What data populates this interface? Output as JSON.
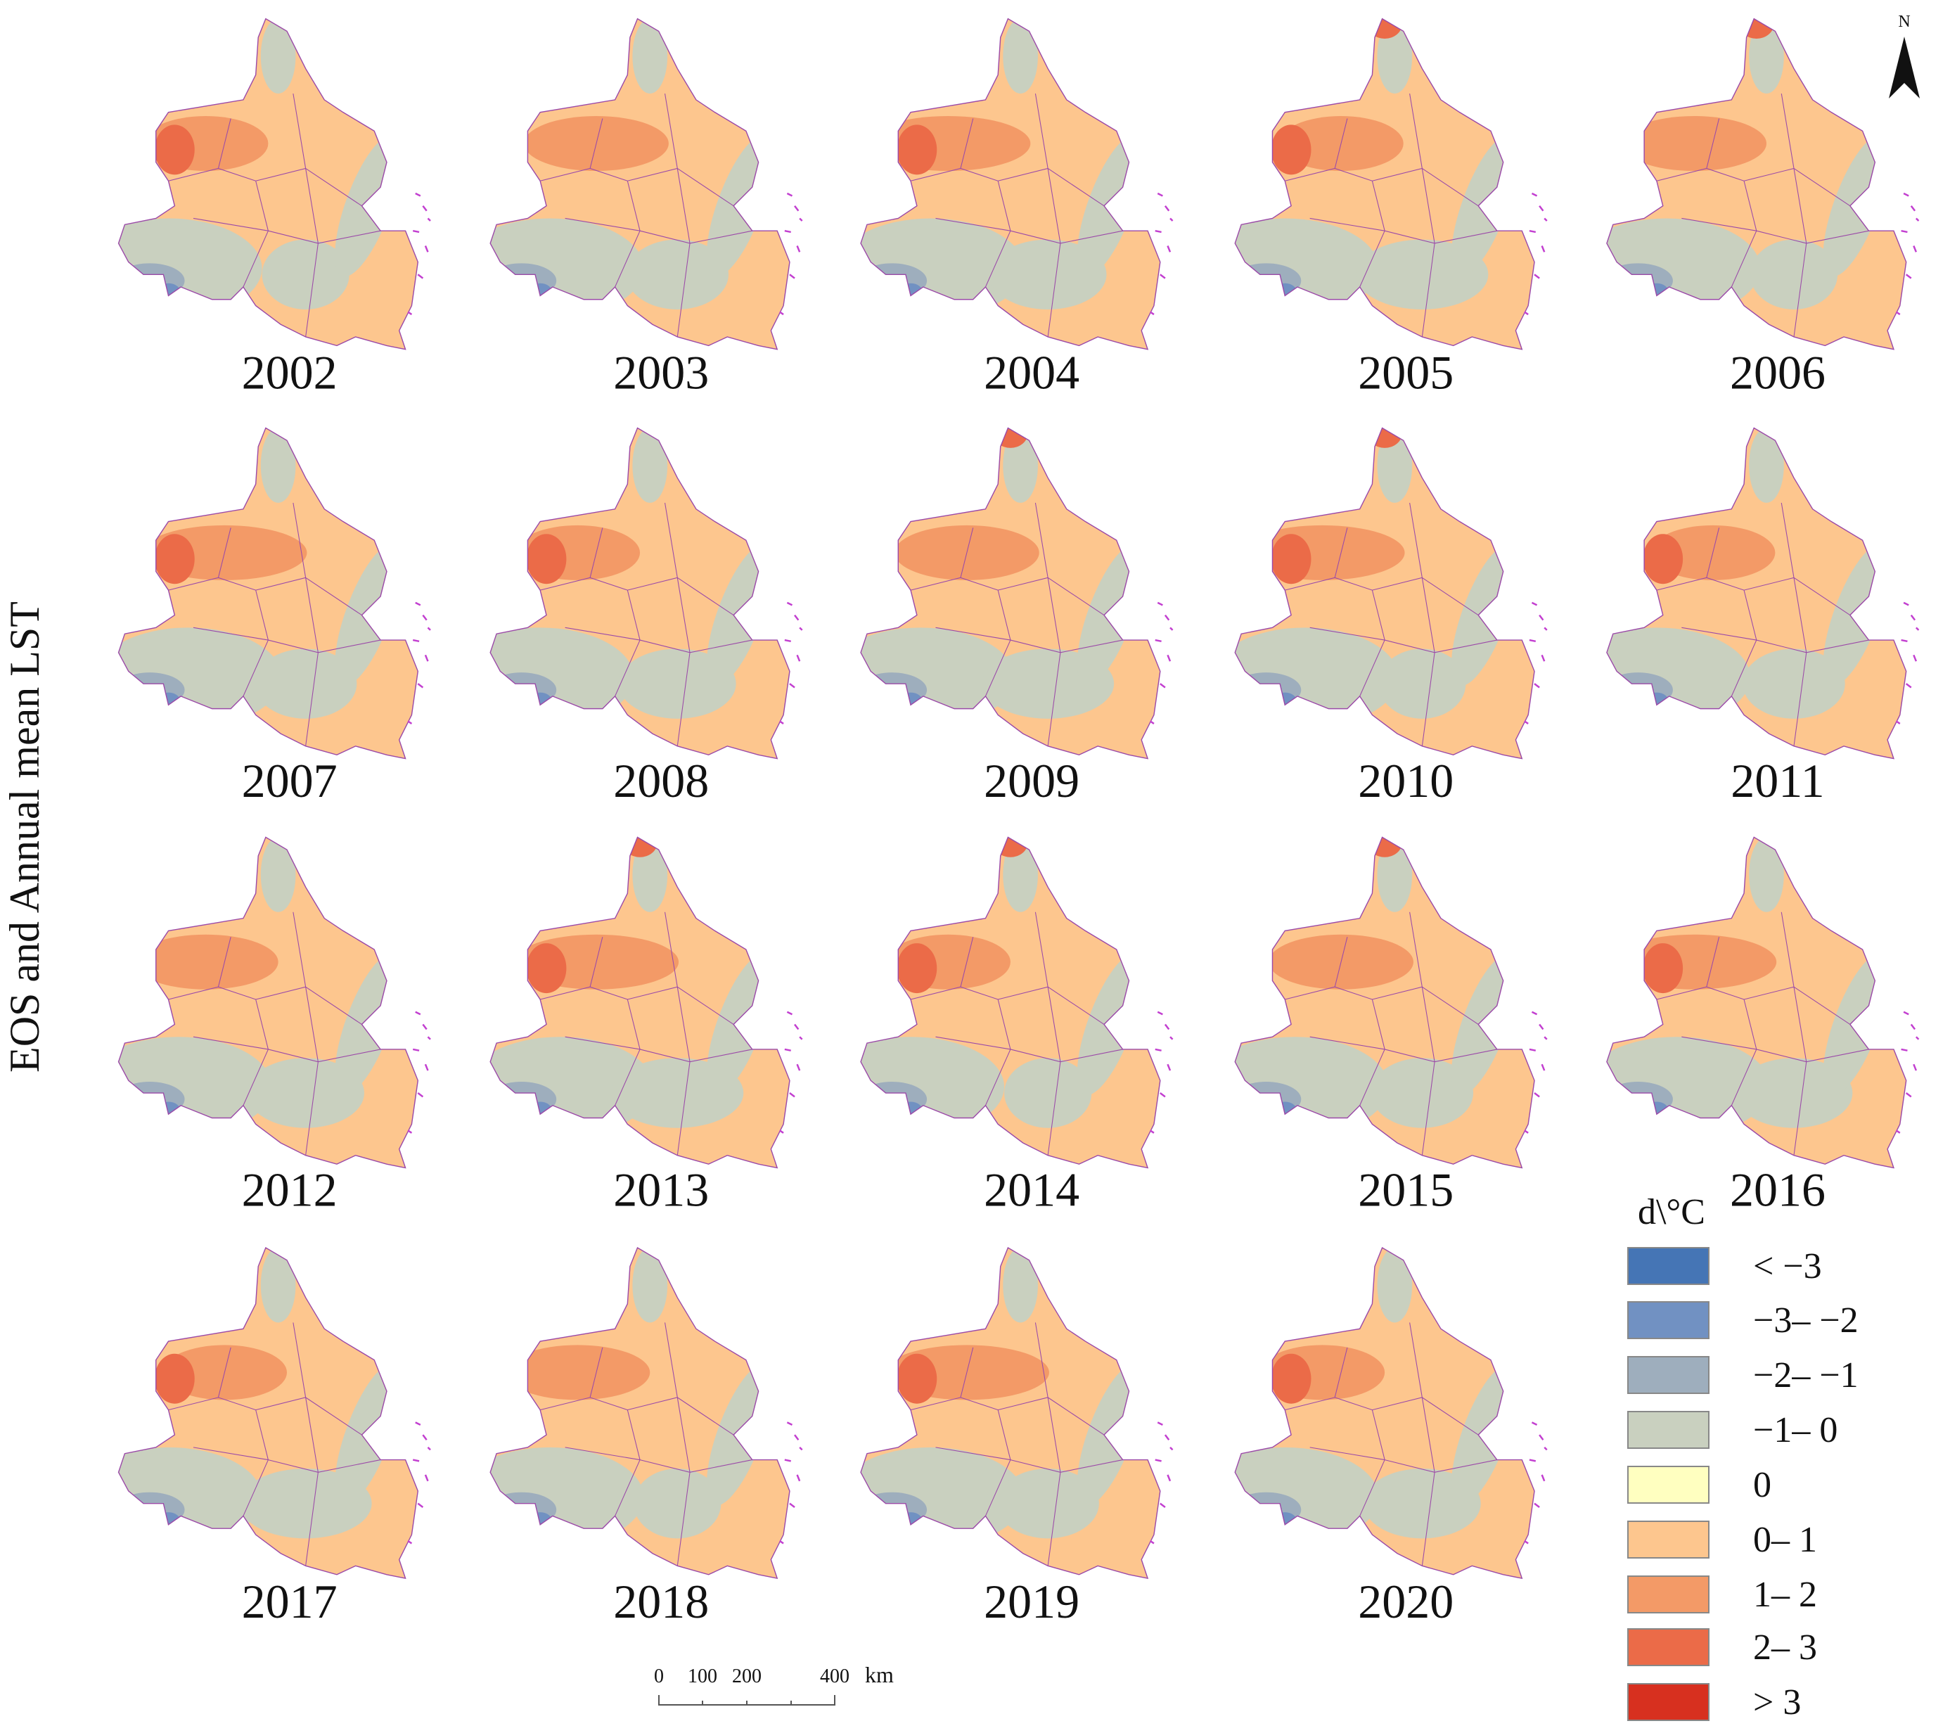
{
  "title": "EOS and Annual mean LST",
  "panels": [
    {
      "year": "2002"
    },
    {
      "year": "2003"
    },
    {
      "year": "2004"
    },
    {
      "year": "2005"
    },
    {
      "year": "2006"
    },
    {
      "year": "2007"
    },
    {
      "year": "2008"
    },
    {
      "year": "2009"
    },
    {
      "year": "2010"
    },
    {
      "year": "2011"
    },
    {
      "year": "2012"
    },
    {
      "year": "2013"
    },
    {
      "year": "2014"
    },
    {
      "year": "2015"
    },
    {
      "year": "2016"
    },
    {
      "year": "2017"
    },
    {
      "year": "2018"
    },
    {
      "year": "2019"
    },
    {
      "year": "2020"
    }
  ],
  "legend": {
    "title": "d\\°C",
    "items": [
      {
        "label": "< −3",
        "color": "#4575b5"
      },
      {
        "label": "−3– −2",
        "color": "#7191c2"
      },
      {
        "label": "−2– −1",
        "color": "#9eaebd"
      },
      {
        "label": "−1– 0",
        "color": "#c9d0bf"
      },
      {
        "label": "0",
        "color": "#ffffc0"
      },
      {
        "label": "0– 1",
        "color": "#fdc68e"
      },
      {
        "label": "1– 2",
        "color": "#f39a67"
      },
      {
        "label": "2– 3",
        "color": "#eb6b48"
      },
      {
        "label": "> 3",
        "color": "#d7301f"
      }
    ]
  },
  "scale_bar": {
    "ticks": [
      "0",
      "100",
      "200",
      "400"
    ],
    "unit": "km"
  },
  "north": "N"
}
